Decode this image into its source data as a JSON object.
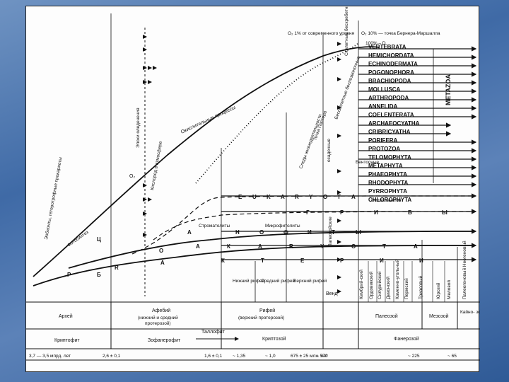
{
  "ages": {
    "archean": "Архей",
    "aphebian": "Афебий",
    "aphebian_note1": "(нижний и средний",
    "aphebian_note2": "протерозой)",
    "riphean": "Рифей",
    "riphean_note": "(верхний протерозой)",
    "vend": "Венд",
    "paleozoic": "Палеозой",
    "mesozoic": "Мезозой",
    "cenozoic": "Кайно-\nзой"
  },
  "eons": {
    "cryptophyte": "Криптофит",
    "zoophanerophyte": "Зофанерофит",
    "cryptozoic": "Криптозой",
    "phanerozoic": "Фанерозой",
    "thallophyte": "Таллофит"
  },
  "time_axis": [
    "3,7 — 3,5 мпрд. лет",
    "2,6 ± 0,1",
    "1,6 ± 0,1",
    "~ 1,35",
    "~ 1,0",
    "675 ± 25 млн. лет",
    "~ 570",
    "~ 225",
    "~ 65"
  ],
  "riphean_subdivisions": [
    "Нижний рифей",
    "Средний рифей",
    "Верхний рифей"
  ],
  "periods": [
    "Кембрий-ский",
    "Ордовикский",
    "Силурийский",
    "Девонский",
    "Каменно-угольный",
    "Пермский",
    "Триасовый",
    "Юрский",
    "Меловой",
    "Палеогеновый Неогеновый"
  ],
  "top_labels": {
    "o2_one_percent": "O₂  1% от современного уровня",
    "o2_ten_percent": "O₂  10% — точка Бернера-Маршалла",
    "hundred_percent": "100% – D",
    "skeletal": "Скелетные бесхребетные",
    "pasteur_point": "Точка Пастера",
    "nonskeletal": "Бесскелетные беспозвоночные",
    "sediments": "Следы жизнедеятельности",
    "metazoa": "METAZOA"
  },
  "curves": {
    "oxidation": "Окислительные процессы",
    "oxygen_atm": "Кислород в атмосфере",
    "banded_iron": "Эпохи оледенения",
    "photosynthesis": "Фотосинтез",
    "heterotrophs": "Эобионты, гетеротрофные прокариоты",
    "o2_label": "O₂",
    "benthos": "Бентосные",
    "sedimentation": "осадочные",
    "paleozoic_vert": "Палеозойские",
    "phytoplankton": "Фитопланктон",
    "stromatolites": "Строматолиты",
    "microphytolites": "Микрофитолиты"
  },
  "letters": {
    "eukaryota": [
      "E",
      "U",
      "K",
      "A",
      "R",
      "Y",
      "O",
      "T",
      "A"
    ],
    "fungi": [
      "Г",
      "Р",
      "И",
      "Б",
      "Ы"
    ],
    "animals": [
      "Н",
      "О",
      "Ф",
      "И",
      "Т",
      "Ы"
    ],
    "prokaryota": [
      "А",
      "К",
      "А",
      "R",
      "Y",
      "O",
      "Т",
      "А"
    ],
    "prokaryota2": [
      "К",
      "Т",
      "Е",
      "Р",
      "И",
      "И"
    ],
    "left_letters": [
      "Ц",
      "R",
      "Р",
      "Б",
      "О",
      "А",
      "А"
    ]
  },
  "taxa": [
    "VERTEBRATA",
    "HEMICHORDATA",
    "ECHINODERMATA",
    "POGONOPHORA",
    "BRACHIOPODA",
    "MOLLUSCA",
    "ARTHROPODA",
    "ANNELIDA",
    "COELENTERATA",
    "ARCHAEOCYATHA",
    "CRIBRICYATHA",
    "PORIFERA",
    "PROTOZOA",
    "TELOMOPHYTA",
    "METAPHYTA",
    "PHAEOPHYTA",
    "RHODOPHYTA",
    "PYRROPHYTA",
    "CHLOROPHYTA"
  ]
}
